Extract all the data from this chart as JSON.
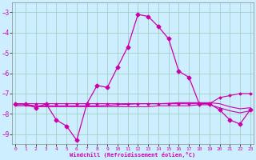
{
  "xlabel": "Windchill (Refroidissement éolien,°C)",
  "bg_color": "#cceeff",
  "grid_color": "#99ccbb",
  "line_color": "#cc00aa",
  "x": [
    0,
    1,
    2,
    3,
    4,
    5,
    6,
    7,
    8,
    9,
    10,
    11,
    12,
    13,
    14,
    15,
    16,
    17,
    18,
    19,
    20,
    21,
    22,
    23
  ],
  "y_main": [
    -7.5,
    -7.5,
    -7.7,
    -7.5,
    -8.3,
    -8.6,
    -9.3,
    -7.5,
    -6.6,
    -6.7,
    -5.7,
    -4.7,
    -3.1,
    -3.2,
    -3.7,
    -4.3,
    -5.9,
    -6.2,
    -7.5,
    -7.5,
    -7.8,
    -8.3,
    -8.5,
    -7.8
  ],
  "y_flat1": [
    -7.5,
    -7.5,
    -7.5,
    -7.5,
    -7.5,
    -7.5,
    -7.5,
    -7.5,
    -7.5,
    -7.5,
    -7.5,
    -7.5,
    -7.5,
    -7.5,
    -7.5,
    -7.5,
    -7.5,
    -7.5,
    -7.5,
    -7.5,
    -7.2,
    -7.1,
    -7.0,
    -7.0
  ],
  "y_flat2": [
    -7.6,
    -7.6,
    -7.65,
    -7.65,
    -7.65,
    -7.65,
    -7.65,
    -7.65,
    -7.65,
    -7.65,
    -7.65,
    -7.65,
    -7.65,
    -7.65,
    -7.6,
    -7.6,
    -7.6,
    -7.6,
    -7.55,
    -7.55,
    -7.7,
    -7.85,
    -7.95,
    -7.85
  ],
  "y_flat3": [
    -7.55,
    -7.55,
    -7.6,
    -7.6,
    -7.6,
    -7.6,
    -7.6,
    -7.6,
    -7.6,
    -7.58,
    -7.55,
    -7.53,
    -7.5,
    -7.5,
    -7.5,
    -7.48,
    -7.45,
    -7.45,
    -7.45,
    -7.45,
    -7.5,
    -7.65,
    -7.75,
    -7.7
  ],
  "ylim": [
    -9.5,
    -2.5
  ],
  "yticks": [
    -9,
    -8,
    -7,
    -6,
    -5,
    -4,
    -3
  ],
  "xticks": [
    0,
    1,
    2,
    3,
    4,
    5,
    6,
    7,
    8,
    9,
    10,
    11,
    12,
    13,
    14,
    15,
    16,
    17,
    18,
    19,
    20,
    21,
    22,
    23
  ]
}
